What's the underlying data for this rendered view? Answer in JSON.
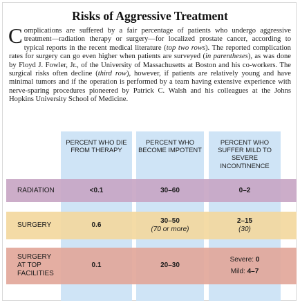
{
  "title": "Risks of Aggressive Treatment",
  "body": {
    "drop_cap": "C",
    "t1": "omplications are suffered by a fair percentage of patients who undergo aggressive treatment—radiation therapy or surgery—for localized prostate cancer, according to typical reports in the recent medical literature (",
    "i1": "top two rows",
    "t2": "). The reported complication rates for surgery can go even higher when patients are surveyed (",
    "i2": "in parentheses",
    "t3": "), as was done by Floyd J. Fowler, Jr., of the University of Massachusetts at Boston and his co-workers. The surgical risks often decline (",
    "i3": "third row",
    "t4": "), however, if patients are relatively young and have minimal tumors and if the operation is performed by a team having extensive experience with nerve-sparing procedures pioneered by Patrick C. Walsh and his colleagues at the Johns Hopkins University School of Medicine."
  },
  "table": {
    "headers": [
      "PERCENT WHO DIE FROM THERAPY",
      "PERCENT WHO BECOME IMPOTENT",
      "PERCENT WHO SUFFER MILD TO SEVERE INCONTINENCE"
    ],
    "rows": [
      {
        "label": "RADIATION",
        "die": "<0.1",
        "impotent": "30–60",
        "incontinence": "0–2"
      },
      {
        "label": "SURGERY",
        "die": "0.6",
        "impotent": "30–50",
        "impotent_survey": "(70 or more)",
        "incontinence": "2–15",
        "incontinence_survey": "(30)"
      },
      {
        "label": "SURGERY AT TOP FACILITIES",
        "die": "0.1",
        "impotent": "20–30",
        "severe_label": "Severe:",
        "severe_value": "0",
        "mild_label": "Mild:",
        "mild_value": "4–7"
      }
    ]
  },
  "colors": {
    "column_bg": "#cfe4f6",
    "radiation_row": "#c8a6c4",
    "surgery_row": "#f3d89e",
    "top_facilities_row": "#e2a79a"
  }
}
